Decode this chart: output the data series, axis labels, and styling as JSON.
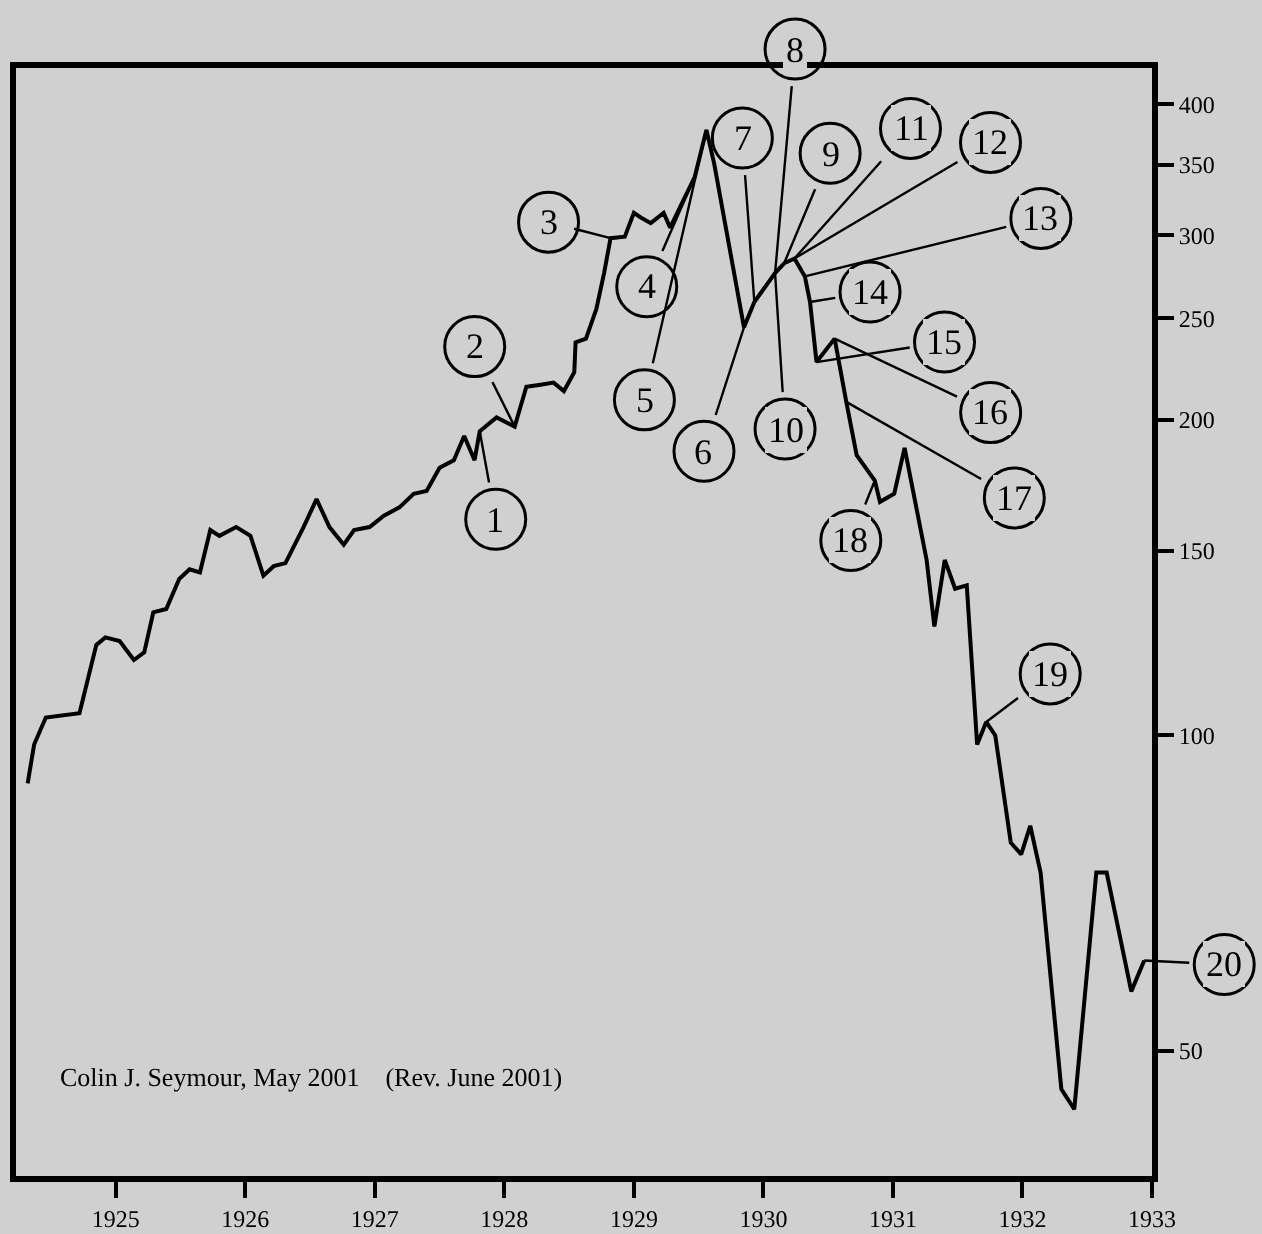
{
  "chart_data": {
    "type": "line",
    "log": true,
    "line_style": "solid",
    "x": [
      1924.32,
      1924.37,
      1924.46,
      1924.72,
      1924.85,
      1924.92,
      1925.03,
      1925.14,
      1925.22,
      1925.29,
      1925.39,
      1925.49,
      1925.57,
      1925.65,
      1925.73,
      1925.8,
      1925.93,
      1926.04,
      1926.14,
      1926.22,
      1926.31,
      1926.45,
      1926.55,
      1926.65,
      1926.76,
      1926.84,
      1926.96,
      1927.07,
      1927.19,
      1927.3,
      1927.4,
      1927.5,
      1927.61,
      1927.69,
      1927.77,
      1927.81,
      1927.94,
      1928.08,
      1928.17,
      1928.28,
      1928.38,
      1928.46,
      1928.54,
      1928.55,
      1928.63,
      1928.71,
      1928.77,
      1928.82,
      1928.93,
      1929.0,
      1929.05,
      1929.13,
      1929.23,
      1929.28,
      1929.47,
      1929.56,
      1929.62,
      1929.85,
      1929.93,
      1930.09,
      1930.16,
      1930.24,
      1930.32,
      1930.36,
      1930.41,
      1930.55,
      1930.64,
      1930.72,
      1930.86,
      1930.9,
      1931.01,
      1931.09,
      1931.26,
      1931.32,
      1931.4,
      1931.48,
      1931.57,
      1931.65,
      1931.72,
      1931.79,
      1931.91,
      1931.99,
      1932.06,
      1932.14,
      1932.3,
      1932.4,
      1932.57,
      1932.65,
      1932.84,
      1932.94
    ],
    "series": [
      {
        "color": "#000000",
        "values": [
          90,
          98,
          104,
          105,
          122,
          124,
          123,
          118,
          120,
          131,
          132,
          141,
          144,
          143,
          157,
          155,
          158,
          155,
          142,
          145,
          146,
          158,
          168,
          158,
          152,
          157,
          158,
          162,
          165,
          170,
          171,
          180,
          183,
          193,
          183,
          195,
          201,
          197,
          215,
          216,
          217,
          213,
          222,
          237,
          239,
          255,
          276,
          298,
          299,
          315,
          312,
          308,
          315,
          305,
          341,
          378,
          351,
          245,
          259,
          276,
          282,
          285,
          274,
          259,
          227,
          239,
          208,
          185,
          175,
          167,
          170,
          188,
          147,
          127,
          147,
          138,
          139,
          98,
          103,
          100,
          79,
          77,
          82,
          74,
          46,
          44,
          74,
          74,
          57,
          61
        ]
      }
    ],
    "xlim": [
      1924.23,
      1933
    ],
    "xticks": [
      1925,
      1926,
      1927,
      1928,
      1929,
      1930,
      1931,
      1932,
      1933
    ],
    "ylim": [
      38,
      433
    ],
    "yticks": [
      50,
      100,
      150,
      200,
      250,
      300,
      350,
      400
    ],
    "annotations": [
      {
        "text": "1",
        "x": 1927.81,
        "y": 195
      },
      {
        "text": "2",
        "x": 1928.08,
        "y": 197
      },
      {
        "text": "3",
        "x": 1928.82,
        "y": 298
      },
      {
        "text": "4",
        "x": 1929.47,
        "y": 341
      },
      {
        "text": "5",
        "x": 1929.56,
        "y": 378
      },
      {
        "text": "6",
        "x": 1929.85,
        "y": 245
      },
      {
        "text": "7",
        "x": 1929.93,
        "y": 259
      },
      {
        "text": "8",
        "x": 1930.09,
        "y": 276
      },
      {
        "text": "9",
        "x": 1930.16,
        "y": 282
      },
      {
        "text": "10",
        "x": 1930.09,
        "y": 276
      },
      {
        "text": "11",
        "x": 1930.24,
        "y": 285
      },
      {
        "text": "12",
        "x": 1930.24,
        "y": 285
      },
      {
        "text": "13",
        "x": 1930.32,
        "y": 274
      },
      {
        "text": "14",
        "x": 1930.36,
        "y": 259
      },
      {
        "text": "15",
        "x": 1930.41,
        "y": 227
      },
      {
        "text": "16",
        "x": 1930.55,
        "y": 239
      },
      {
        "text": "17",
        "x": 1930.64,
        "y": 208
      },
      {
        "text": "18",
        "x": 1930.86,
        "y": 175
      },
      {
        "text": "19",
        "x": 1931.72,
        "y": 103
      },
      {
        "text": "20",
        "x": 1932.94,
        "y": 61
      },
      "Colin J. Seymour, May 2001    (Rev. June 2001)"
    ]
  }
}
